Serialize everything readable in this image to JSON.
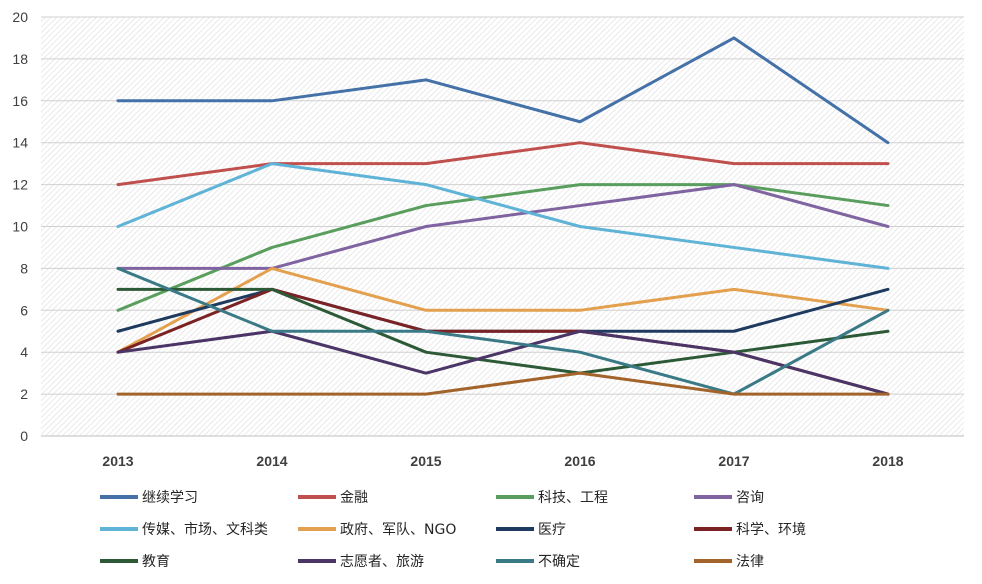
{
  "chart_data": {
    "type": "line",
    "x": [
      "2013",
      "2014",
      "2015",
      "2016",
      "2017",
      "2018"
    ],
    "ylim": [
      0,
      20
    ],
    "yticks": [
      0,
      2,
      4,
      6,
      8,
      10,
      12,
      14,
      16,
      18,
      20
    ],
    "grid": "hatched-background",
    "legend_position": "bottom",
    "series": [
      {
        "name": "继续学习",
        "color": "#4472a8",
        "values": [
          16,
          16,
          17,
          15,
          19,
          14
        ]
      },
      {
        "name": "金融",
        "color": "#c0504d",
        "values": [
          12,
          13,
          13,
          14,
          13,
          13
        ]
      },
      {
        "name": "科技、工程",
        "color": "#5a9e5e",
        "values": [
          6,
          9,
          11,
          12,
          12,
          11
        ]
      },
      {
        "name": "咨询",
        "color": "#8064a2",
        "values": [
          8,
          8,
          10,
          11,
          12,
          10
        ]
      },
      {
        "name": "传媒、市场、文科类",
        "color": "#5fb3d6",
        "values": [
          10,
          13,
          12,
          10,
          9,
          8
        ]
      },
      {
        "name": "政府、军队、NGO",
        "color": "#e3a04e",
        "values": [
          4,
          8,
          6,
          6,
          7,
          6
        ]
      },
      {
        "name": "医疗",
        "color": "#1f3a5f",
        "values": [
          5,
          7,
          5,
          5,
          5,
          7
        ]
      },
      {
        "name": "科学、环境",
        "color": "#7b2224",
        "values": [
          4,
          7,
          5,
          5,
          4,
          2
        ]
      },
      {
        "name": "教育",
        "color": "#2d5a36",
        "values": [
          7,
          7,
          4,
          3,
          4,
          5
        ]
      },
      {
        "name": "志愿者、旅游",
        "color": "#4b3566",
        "values": [
          4,
          5,
          3,
          5,
          4,
          2
        ]
      },
      {
        "name": "不确定",
        "color": "#3a7a86",
        "values": [
          8,
          5,
          5,
          4,
          2,
          6
        ]
      },
      {
        "name": "法律",
        "color": "#a2642a",
        "values": [
          2,
          2,
          2,
          3,
          2,
          2
        ]
      }
    ]
  }
}
